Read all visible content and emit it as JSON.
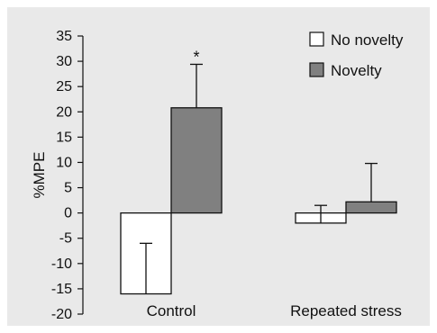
{
  "chart_data": {
    "type": "bar",
    "title": "",
    "xlabel": "",
    "ylabel": "%MPE",
    "ylim": [
      -20,
      35
    ],
    "yticks": [
      35,
      30,
      25,
      20,
      15,
      10,
      5,
      0,
      -5,
      -10,
      -15,
      -20
    ],
    "ytick_labels": [
      "35",
      "30",
      "25",
      "20",
      "15",
      "10",
      "5",
      "0",
      "-5",
      "-10",
      "-15",
      "-20"
    ],
    "categories": [
      "Control",
      "Repeated stress"
    ],
    "series": [
      {
        "name": "No novelty",
        "values": [
          -16,
          -2
        ],
        "errors": [
          10,
          3.5
        ],
        "error_direction": [
          "up",
          "up"
        ],
        "color": "#ffffff"
      },
      {
        "name": "Novelty",
        "values": [
          20.8,
          2.2
        ],
        "errors": [
          8.6,
          7.6
        ],
        "error_direction": [
          "up",
          "up"
        ],
        "color": "#808080"
      }
    ],
    "annotations": [
      {
        "text": "*",
        "category": "Control",
        "series": "Novelty"
      }
    ],
    "legend_position": "top-right",
    "grid": false
  }
}
